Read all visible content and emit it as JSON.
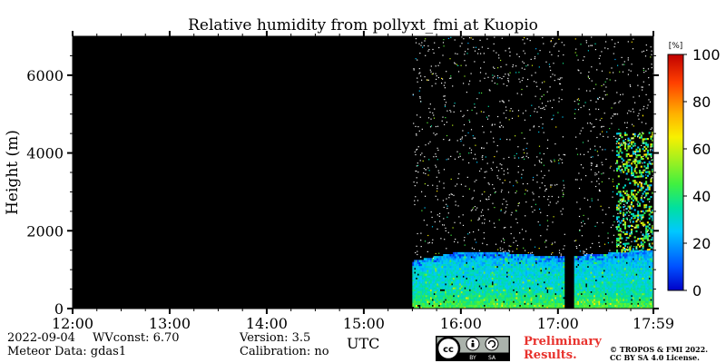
{
  "chart_data": {
    "type": "heatmap",
    "title": "Relative humidity from pollyxt_fmi at Kuopio",
    "ylabel": "Height (m)",
    "xlabel": "UTC",
    "xlim": [
      "12:00",
      "17:59"
    ],
    "ylim": [
      0,
      7000
    ],
    "x_ticks": [
      "12:00",
      "13:00",
      "14:00",
      "15:00",
      "16:00",
      "17:00",
      "17:59"
    ],
    "y_ticks": [
      0,
      2000,
      4000,
      6000
    ],
    "colorbar": {
      "unit": "[%]",
      "range": [
        0,
        100
      ],
      "ticks": [
        0,
        20,
        40,
        60,
        80,
        100
      ],
      "colormap": "jet"
    },
    "no_data_color": "#000000",
    "measurement_periods": [
      {
        "start": "15:30",
        "end": "17:04"
      },
      {
        "start": "17:10",
        "end": "17:59"
      }
    ],
    "boundary_layer_top_m": [
      {
        "time": "15:30",
        "height": 1200
      },
      {
        "time": "16:00",
        "height": 1450
      },
      {
        "time": "16:30",
        "height": 1400
      },
      {
        "time": "17:00",
        "height": 1300
      },
      {
        "time": "17:30",
        "height": 1400
      },
      {
        "time": "17:59",
        "height": 1500
      }
    ],
    "humidity_profile": [
      {
        "height": 0,
        "rh": 45
      },
      {
        "height": 500,
        "rh": 32
      },
      {
        "height": 1000,
        "rh": 28
      },
      {
        "height": 1400,
        "rh": 22
      }
    ]
  },
  "footer": {
    "date": "2022-09-04",
    "wvconst": "WVconst:   6.70",
    "meteor": "Meteor Data: gdas1",
    "version": "Version: 3.5",
    "calibration": "Calibration: no",
    "preliminary_1": "Preliminary",
    "preliminary_2": "Results.",
    "copyright_1": "© TROPOS & FMI 2022.",
    "copyright_2": "CC BY SA 4.0 License.",
    "cc_badge_text": [
      "BY",
      "SA"
    ]
  }
}
